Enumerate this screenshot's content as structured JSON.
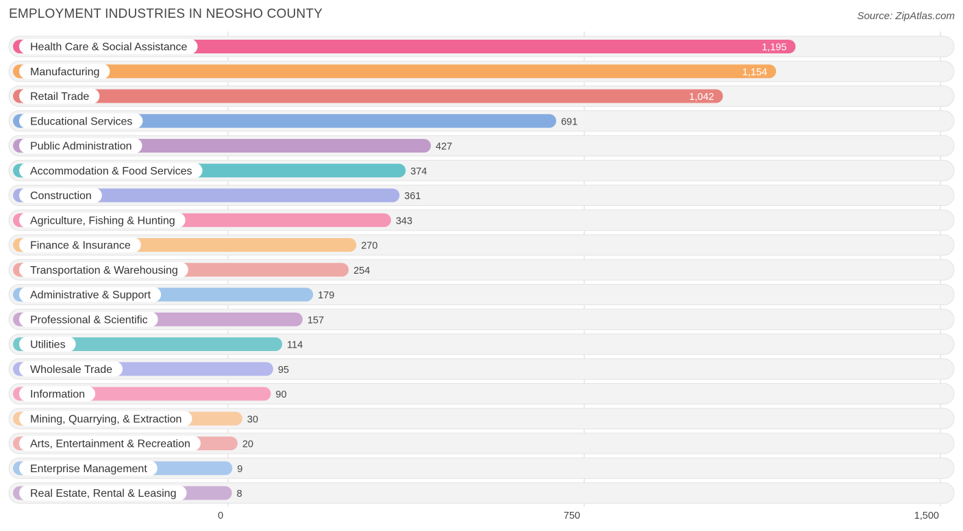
{
  "chart_data": {
    "type": "bar",
    "orientation": "horizontal",
    "title": "EMPLOYMENT INDUSTRIES IN NEOSHO COUNTY",
    "source": "Source: ZipAtlas.com",
    "categories": [
      "Health Care & Social Assistance",
      "Manufacturing",
      "Retail Trade",
      "Educational Services",
      "Public Administration",
      "Accommodation & Food Services",
      "Construction",
      "Agriculture, Fishing & Hunting",
      "Finance & Insurance",
      "Transportation & Warehousing",
      "Administrative & Support",
      "Professional & Scientific",
      "Utilities",
      "Wholesale Trade",
      "Information",
      "Mining, Quarrying, & Extraction",
      "Arts, Entertainment & Recreation",
      "Enterprise Management",
      "Real Estate, Rental & Leasing"
    ],
    "values": [
      1195,
      1154,
      1042,
      691,
      427,
      374,
      361,
      343,
      270,
      254,
      179,
      157,
      114,
      95,
      90,
      30,
      20,
      9,
      8
    ],
    "value_labels": [
      "1,195",
      "1,154",
      "1,042",
      "691",
      "427",
      "374",
      "361",
      "343",
      "270",
      "254",
      "179",
      "157",
      "114",
      "95",
      "90",
      "30",
      "20",
      "9",
      "8"
    ],
    "colors": [
      "#f06593",
      "#f7a95f",
      "#e8817c",
      "#84ace0",
      "#c09bc9",
      "#63c3c8",
      "#a9b1e8",
      "#f596b4",
      "#f9c58f",
      "#eea9a6",
      "#a0c5eb",
      "#cba7d1",
      "#75c9cc",
      "#b4b8ec",
      "#f7a3c0",
      "#f9cba0",
      "#f1b1b1",
      "#a8c8ee",
      "#cbafd4"
    ],
    "xlim": [
      0,
      1500
    ],
    "xticks": [
      0,
      750,
      1500
    ],
    "xtick_labels": [
      "0",
      "750",
      "1,500"
    ],
    "xlabel": "",
    "ylabel": "",
    "grid": true,
    "legend": "none"
  }
}
